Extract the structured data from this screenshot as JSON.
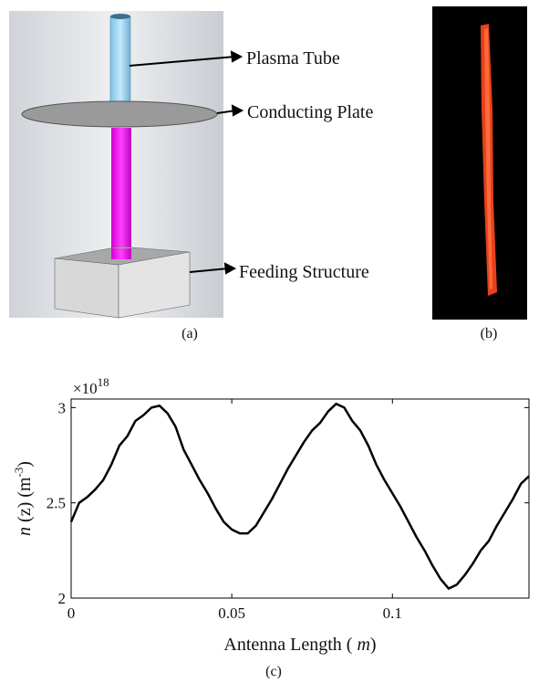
{
  "figure": {
    "a": {
      "labels": [
        "Plasma Tube",
        "Conducting Plate",
        "Feeding Structure"
      ],
      "caption": "(a)"
    },
    "b": {
      "caption": "(b)"
    },
    "c": {
      "caption": "(c)"
    }
  },
  "chart_data": {
    "type": "line",
    "exponent": {
      "base": "×10",
      "power": "18"
    },
    "xlabel": {
      "text": "Antenna Length ( ",
      "unit": "m",
      "close": ")"
    },
    "ylabel": {
      "var": "n",
      "text": " (z) (m",
      "sup": "-3",
      "close": ")"
    },
    "x": [
      0,
      0.0025,
      0.005,
      0.0075,
      0.01,
      0.0125,
      0.015,
      0.0175,
      0.02,
      0.0225,
      0.025,
      0.0275,
      0.03,
      0.0325,
      0.035,
      0.0375,
      0.04,
      0.0425,
      0.045,
      0.0475,
      0.05,
      0.0525,
      0.055,
      0.0575,
      0.06,
      0.0625,
      0.065,
      0.0675,
      0.07,
      0.0725,
      0.075,
      0.0775,
      0.08,
      0.0825,
      0.085,
      0.0875,
      0.09,
      0.0925,
      0.095,
      0.0975,
      0.1,
      0.1025,
      0.105,
      0.1075,
      0.11,
      0.1125,
      0.115,
      0.1175,
      0.12,
      0.1225,
      0.125,
      0.1275,
      0.13,
      0.1325,
      0.135,
      0.1375,
      0.14,
      0.1425
    ],
    "values": [
      2.4,
      2.5,
      2.53,
      2.57,
      2.62,
      2.7,
      2.8,
      2.85,
      2.93,
      2.96,
      3.0,
      3.01,
      2.97,
      2.9,
      2.78,
      2.7,
      2.62,
      2.55,
      2.47,
      2.4,
      2.36,
      2.34,
      2.34,
      2.38,
      2.45,
      2.52,
      2.6,
      2.68,
      2.75,
      2.82,
      2.88,
      2.92,
      2.98,
      3.02,
      3.0,
      2.93,
      2.88,
      2.8,
      2.7,
      2.62,
      2.55,
      2.48,
      2.4,
      2.32,
      2.25,
      2.17,
      2.1,
      2.05,
      2.07,
      2.12,
      2.18,
      2.25,
      2.3,
      2.38,
      2.45,
      2.52,
      2.6,
      2.64
    ],
    "color": "#000000",
    "xlim": [
      0,
      0.1425
    ],
    "ylim": [
      2,
      3.045
    ],
    "xticks": [
      0,
      0.05,
      0.1
    ],
    "yticks": [
      2,
      2.5,
      3
    ]
  }
}
